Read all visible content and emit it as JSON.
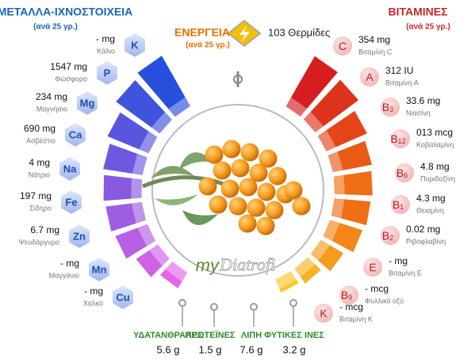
{
  "minerals": {
    "title": "ΜΕΤΑΛΛΑ-ΙΧΝΟΣΤΟΙΧΕΙΑ",
    "subtitle": "(ανά 25 γρ.)",
    "items": [
      {
        "symbol": "K",
        "value": "- mg",
        "name": "Κάλιο"
      },
      {
        "symbol": "P",
        "value": "1547 mg",
        "name": "Φώσφορο"
      },
      {
        "symbol": "Mg",
        "value": "234 mg",
        "name": "Μαγνήσιο"
      },
      {
        "symbol": "Ca",
        "value": "690 mg",
        "name": "Ασβέστιο"
      },
      {
        "symbol": "Na",
        "value": "4 mg",
        "name": "Νάτριο"
      },
      {
        "symbol": "Fe",
        "value": "197 mg",
        "name": "Σίδηρο"
      },
      {
        "symbol": "Zn",
        "value": "6.7 mg",
        "name": "Ψευδάργυρο"
      },
      {
        "symbol": "Mn",
        "value": "- mg",
        "name": "Μαγγάνιο"
      },
      {
        "symbol": "Cu",
        "value": "- mg",
        "name": "Χαλκό"
      }
    ]
  },
  "energy": {
    "title": "ΕΝΕΡΓΕΙΑ",
    "subtitle": "(ανά 25 γρ.)",
    "value": "103 Θερμίδες"
  },
  "vitamins": {
    "title": "ΒΙΤΑΜΙΝΕΣ",
    "subtitle": "(ανά 25 γρ.)",
    "items": [
      {
        "symbol": "C",
        "value": "354 mg",
        "name": "Βιταμίνη C"
      },
      {
        "symbol": "A",
        "value": "312 IU",
        "name": "Βιταμίνη A"
      },
      {
        "symbol": "B",
        "sub": "3",
        "value": "33.6 mg",
        "name": "Νιασίνη"
      },
      {
        "symbol": "B",
        "sub": "12",
        "value": "013 mcg",
        "name": "Κοβαλαμίνη"
      },
      {
        "symbol": "B",
        "sub": "6",
        "value": "4.8 mg",
        "name": "Πυριδοξίνη"
      },
      {
        "symbol": "B",
        "sub": "1",
        "value": "4.3 mg",
        "name": "Θειαμίνη"
      },
      {
        "symbol": "B",
        "sub": "2",
        "value": "0.02 mg",
        "name": "Ριβοφλαβίνη"
      },
      {
        "symbol": "E",
        "value": "- mg",
        "name": "Βιταμίνη E"
      },
      {
        "symbol": "B",
        "sub": "9",
        "value": "- mcg",
        "name": "Φυλλικό οξύ"
      },
      {
        "symbol": "K",
        "value": "- mcg",
        "name": "Βιταμίνη K"
      }
    ]
  },
  "macros": [
    {
      "name": "ΥΔΑΤΑΝΘΡΑΚΕΣ",
      "value": "5.6 g"
    },
    {
      "name": "ΠΡΩΤΕΪΝΕΣ",
      "value": "1.5 g"
    },
    {
      "name": "ΛΙΠΗ",
      "value": "7.6 g"
    },
    {
      "name": "ΦΥΤΙΚΕΣ ΙΝΕΣ",
      "value": "3.2 g"
    }
  ],
  "logo": {
    "prefix": "my",
    "brand": "Diatrofi"
  }
}
